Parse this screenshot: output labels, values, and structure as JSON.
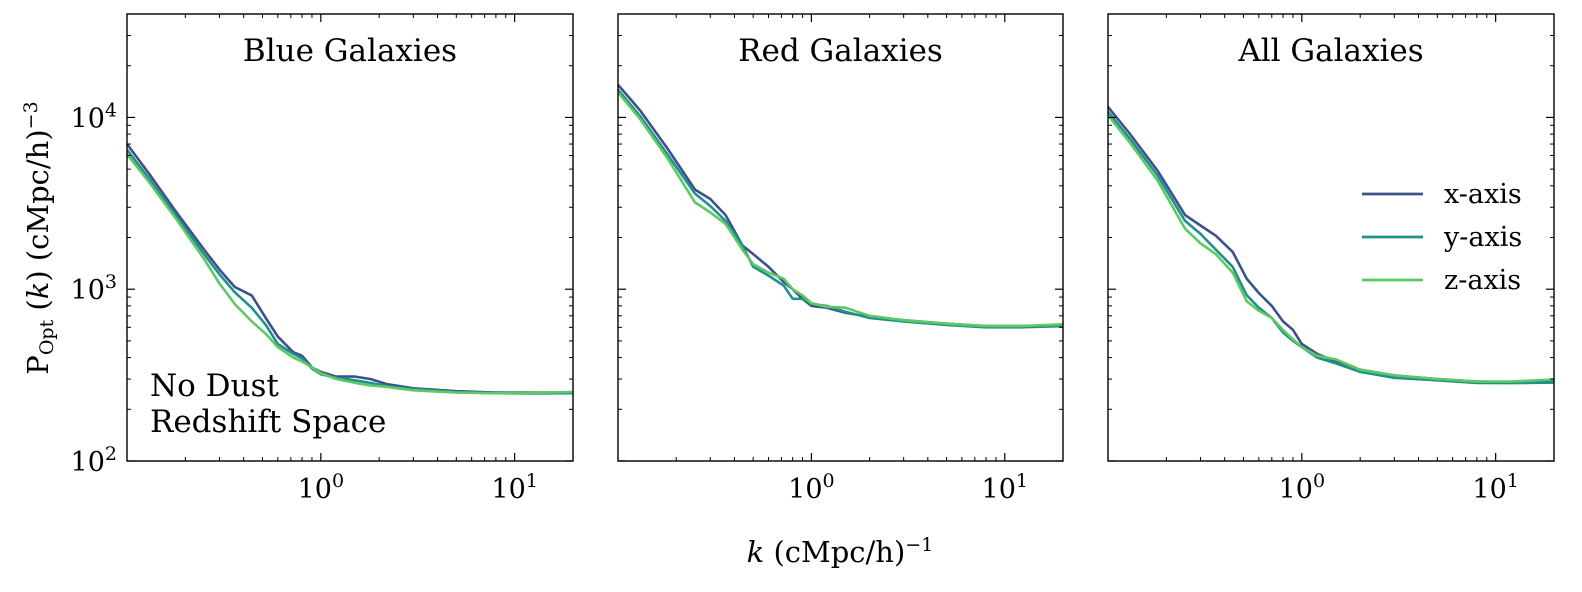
{
  "figure": {
    "ylabel": {
      "main": "P",
      "sub": "Opt",
      "mid": " (",
      "k": "k",
      "rest": ") (cMpc/h)",
      "exp": "−3"
    },
    "xlabel": {
      "k": "k",
      "rest": " (cMpc/h)",
      "exp": "−1"
    },
    "annotation": {
      "line1": "No Dust",
      "line2": "Redshift Space"
    }
  },
  "chart_data": [
    {
      "type": "line",
      "title": "Blue Galaxies",
      "xscale": "log",
      "yscale": "log",
      "xlim": [
        0.1,
        20
      ],
      "ylim": [
        100,
        40000
      ],
      "xticks": [
        {
          "base": "10",
          "exp": "0",
          "value": 1
        },
        {
          "base": "10",
          "exp": "1",
          "value": 10
        }
      ],
      "yticks": [
        {
          "base": "10",
          "exp": "2",
          "value": 100
        },
        {
          "base": "10",
          "exp": "3",
          "value": 1000
        },
        {
          "base": "10",
          "exp": "4",
          "value": 10000
        }
      ],
      "series": [
        {
          "name": "x-axis",
          "color": "#3b528b",
          "x": [
            0.1,
            0.13,
            0.18,
            0.25,
            0.3,
            0.36,
            0.44,
            0.52,
            0.6,
            0.72,
            0.8,
            0.9,
            1.0,
            1.2,
            1.5,
            1.8,
            2.2,
            3,
            5,
            8,
            12,
            20
          ],
          "y": [
            7000,
            4700,
            2800,
            1700,
            1300,
            1030,
            920,
            680,
            530,
            430,
            410,
            350,
            330,
            310,
            310,
            300,
            280,
            265,
            255,
            250,
            250,
            250
          ]
        },
        {
          "name": "y-axis",
          "color": "#21908d",
          "x": [
            0.1,
            0.13,
            0.18,
            0.25,
            0.3,
            0.36,
            0.44,
            0.52,
            0.6,
            0.72,
            0.8,
            0.9,
            1.0,
            1.2,
            1.5,
            1.8,
            2.2,
            3,
            5,
            8,
            12,
            20
          ],
          "y": [
            6500,
            4400,
            2650,
            1600,
            1220,
            960,
            780,
            620,
            480,
            420,
            395,
            345,
            320,
            305,
            295,
            285,
            272,
            262,
            252,
            248,
            247,
            248
          ]
        },
        {
          "name": "z-axis",
          "color": "#5ec962",
          "x": [
            0.1,
            0.13,
            0.18,
            0.25,
            0.3,
            0.36,
            0.44,
            0.52,
            0.6,
            0.72,
            0.8,
            0.9,
            1.0,
            1.2,
            1.5,
            1.8,
            2.2,
            3,
            5,
            8,
            12,
            20
          ],
          "y": [
            6100,
            4200,
            2550,
            1500,
            1080,
            820,
            650,
            550,
            460,
            400,
            380,
            350,
            325,
            300,
            285,
            275,
            270,
            258,
            250,
            248,
            249,
            252
          ]
        }
      ]
    },
    {
      "type": "line",
      "title": "Red Galaxies",
      "xscale": "log",
      "yscale": "log",
      "xlim": [
        0.1,
        20
      ],
      "ylim": [
        100,
        40000
      ],
      "xticks": [
        {
          "base": "10",
          "exp": "0",
          "value": 1
        },
        {
          "base": "10",
          "exp": "1",
          "value": 10
        }
      ],
      "yticks": [
        {
          "base": "10",
          "exp": "2",
          "value": 100
        },
        {
          "base": "10",
          "exp": "3",
          "value": 1000
        },
        {
          "base": "10",
          "exp": "4",
          "value": 10000
        }
      ],
      "series": [
        {
          "name": "x-axis",
          "color": "#3b528b",
          "x": [
            0.1,
            0.13,
            0.18,
            0.25,
            0.3,
            0.36,
            0.44,
            0.5,
            0.6,
            0.72,
            0.8,
            0.9,
            1.0,
            1.2,
            1.5,
            2,
            3,
            5,
            8,
            12,
            20
          ],
          "y": [
            15500,
            11000,
            6600,
            3800,
            3350,
            2700,
            1800,
            1600,
            1350,
            1100,
            1000,
            880,
            800,
            780,
            730,
            690,
            660,
            630,
            610,
            610,
            610
          ]
        },
        {
          "name": "y-axis",
          "color": "#21908d",
          "x": [
            0.1,
            0.13,
            0.18,
            0.25,
            0.3,
            0.36,
            0.44,
            0.5,
            0.6,
            0.72,
            0.8,
            0.9,
            1.0,
            1.2,
            1.5,
            2,
            3,
            5,
            8,
            12,
            20
          ],
          "y": [
            14500,
            10200,
            6100,
            3600,
            3050,
            2500,
            1800,
            1350,
            1200,
            1050,
            880,
            880,
            820,
            800,
            740,
            680,
            650,
            620,
            600,
            600,
            610
          ]
        },
        {
          "name": "z-axis",
          "color": "#5ec962",
          "x": [
            0.1,
            0.13,
            0.18,
            0.25,
            0.3,
            0.36,
            0.44,
            0.5,
            0.6,
            0.72,
            0.8,
            0.9,
            1.0,
            1.2,
            1.5,
            2,
            3,
            5,
            8,
            12,
            20
          ],
          "y": [
            14000,
            9800,
            5800,
            3200,
            2800,
            2400,
            1700,
            1400,
            1250,
            1150,
            1000,
            920,
            830,
            790,
            780,
            700,
            660,
            630,
            610,
            610,
            625
          ]
        }
      ]
    },
    {
      "type": "line",
      "title": "All Galaxies",
      "xscale": "log",
      "yscale": "log",
      "xlim": [
        0.1,
        20
      ],
      "ylim": [
        100,
        40000
      ],
      "xticks": [
        {
          "base": "10",
          "exp": "0",
          "value": 1
        },
        {
          "base": "10",
          "exp": "1",
          "value": 10
        }
      ],
      "yticks": [
        {
          "base": "10",
          "exp": "2",
          "value": 100
        },
        {
          "base": "10",
          "exp": "3",
          "value": 1000
        },
        {
          "base": "10",
          "exp": "4",
          "value": 10000
        }
      ],
      "series": [
        {
          "name": "x-axis",
          "color": "#3b528b",
          "x": [
            0.1,
            0.13,
            0.18,
            0.25,
            0.3,
            0.36,
            0.44,
            0.52,
            0.6,
            0.7,
            0.8,
            0.9,
            1.0,
            1.2,
            1.5,
            2,
            3,
            5,
            8,
            12,
            20
          ],
          "y": [
            11500,
            8000,
            4900,
            2700,
            2350,
            2050,
            1650,
            1150,
            950,
            800,
            650,
            580,
            480,
            420,
            380,
            340,
            315,
            300,
            290,
            288,
            290
          ]
        },
        {
          "name": "y-axis",
          "color": "#21908d",
          "x": [
            0.1,
            0.13,
            0.18,
            0.25,
            0.3,
            0.36,
            0.44,
            0.52,
            0.6,
            0.7,
            0.8,
            0.9,
            1.0,
            1.2,
            1.5,
            2,
            3,
            5,
            8,
            12,
            20
          ],
          "y": [
            10800,
            7500,
            4600,
            2500,
            2100,
            1700,
            1350,
            920,
            780,
            680,
            560,
            500,
            460,
            400,
            370,
            330,
            305,
            295,
            285,
            284,
            286
          ]
        },
        {
          "name": "z-axis",
          "color": "#5ec962",
          "x": [
            0.1,
            0.13,
            0.18,
            0.25,
            0.3,
            0.36,
            0.44,
            0.52,
            0.6,
            0.7,
            0.8,
            0.9,
            1.0,
            1.2,
            1.5,
            2,
            3,
            5,
            8,
            12,
            20
          ],
          "y": [
            10300,
            7100,
            4300,
            2250,
            1850,
            1600,
            1250,
            850,
            750,
            680,
            580,
            510,
            460,
            410,
            390,
            340,
            315,
            300,
            290,
            290,
            298
          ]
        }
      ]
    }
  ],
  "legend": {
    "placement": "center-right of third panel",
    "items": [
      {
        "label": "x-axis",
        "color": "#3b528b"
      },
      {
        "label": "y-axis",
        "color": "#21908d"
      },
      {
        "label": "z-axis",
        "color": "#5ec962"
      }
    ]
  }
}
